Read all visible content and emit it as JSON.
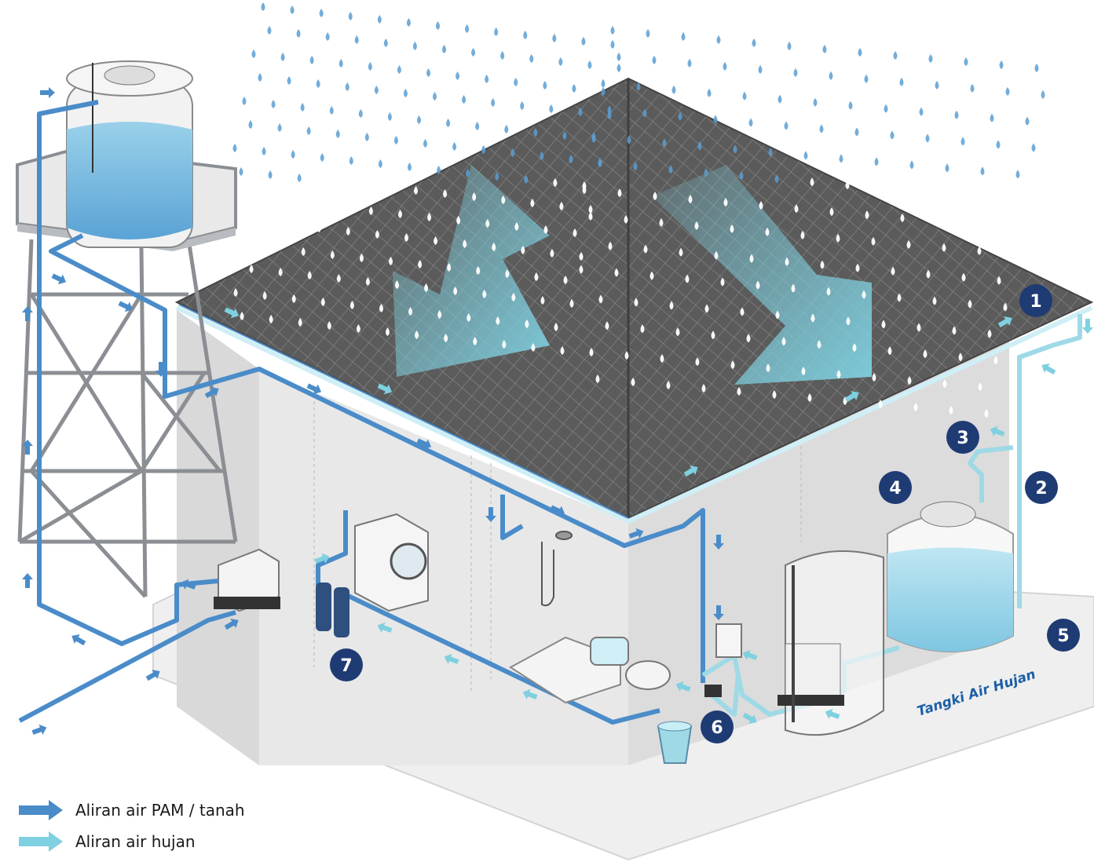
{
  "badges": [
    "1",
    "2",
    "3",
    "4",
    "5",
    "6",
    "7"
  ],
  "tank_label": "Tangki Air Hujan",
  "legend": [
    {
      "label": "Aliran air PAM / tanah",
      "color": "#4a8cc9"
    },
    {
      "label": "Aliran air hujan",
      "color": "#7fd0e0"
    }
  ],
  "colors": {
    "pam_pipe": "#4a8cc9",
    "rain_pipe": "#9fd9e6",
    "roof": "#5a5a5a",
    "wall": "#e6e6e6",
    "ground": "#eeeeee",
    "badge": "#1f3b73",
    "rain_drop": "#5a9fd4"
  }
}
